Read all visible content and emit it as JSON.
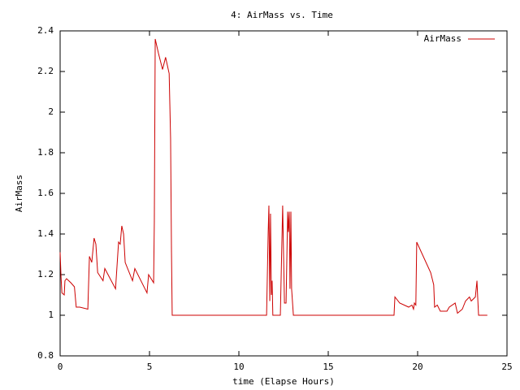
{
  "chart_data": {
    "type": "line",
    "title": "4: AirMass vs. Time",
    "x_label": "time (Elapse Hours)",
    "y_label": "AirMass",
    "x": [
      0,
      0.05,
      0.1,
      0.23,
      0.27,
      0.36,
      0.6,
      0.8,
      0.9,
      1.1,
      1.55,
      1.64,
      1.77,
      1.9,
      2.0,
      2.1,
      2.4,
      2.5,
      3.1,
      3.27,
      3.36,
      3.45,
      3.55,
      3.64,
      4.05,
      4.18,
      4.86,
      4.95,
      5.23,
      5.27,
      5.32,
      5.5,
      5.73,
      5.9,
      6.1,
      6.18,
      6.23,
      6.27,
      11.55,
      11.64,
      11.68,
      11.73,
      11.77,
      11.82,
      11.86,
      11.9,
      12.32,
      12.45,
      12.55,
      12.64,
      12.73,
      12.77,
      12.82,
      12.86,
      12.91,
      12.95,
      13.05,
      18.68,
      18.73,
      19.0,
      19.5,
      19.68,
      19.77,
      19.82,
      19.9,
      19.95,
      20.73,
      20.9,
      20.95,
      21.1,
      21.27,
      21.64,
      21.77,
      22.1,
      22.23,
      22.5,
      22.68,
      22.9,
      23.0,
      23.23,
      23.32,
      23.36,
      23.41,
      23.9
    ],
    "series": [
      {
        "name": "AirMass",
        "color": "#cc0000",
        "values": [
          1.31,
          1.19,
          1.11,
          1.1,
          1.17,
          1.18,
          1.16,
          1.14,
          1.04,
          1.04,
          1.03,
          1.29,
          1.26,
          1.38,
          1.35,
          1.21,
          1.17,
          1.23,
          1.13,
          1.36,
          1.35,
          1.44,
          1.4,
          1.26,
          1.17,
          1.23,
          1.11,
          1.2,
          1.16,
          1.46,
          2.36,
          2.29,
          2.21,
          2.27,
          2.19,
          1.87,
          1.31,
          1.0,
          1.0,
          1.41,
          1.54,
          1.07,
          1.5,
          1.1,
          1.17,
          1.0,
          1.0,
          1.54,
          1.06,
          1.06,
          1.51,
          1.41,
          1.51,
          1.13,
          1.51,
          1.13,
          1.0,
          1.0,
          1.09,
          1.06,
          1.04,
          1.05,
          1.03,
          1.06,
          1.05,
          1.36,
          1.21,
          1.15,
          1.04,
          1.05,
          1.02,
          1.02,
          1.04,
          1.06,
          1.01,
          1.03,
          1.07,
          1.09,
          1.07,
          1.09,
          1.17,
          1.09,
          1.0,
          1.0
        ]
      }
    ],
    "xlim": [
      0,
      25
    ],
    "xticks": [
      0,
      5,
      10,
      15,
      20,
      25
    ],
    "ylim": [
      0.8,
      2.4
    ],
    "yticks": [
      0.8,
      1,
      1.2,
      1.4,
      1.6,
      1.8,
      2,
      2.2,
      2.4
    ],
    "grid": false,
    "legend": "upper-right"
  }
}
